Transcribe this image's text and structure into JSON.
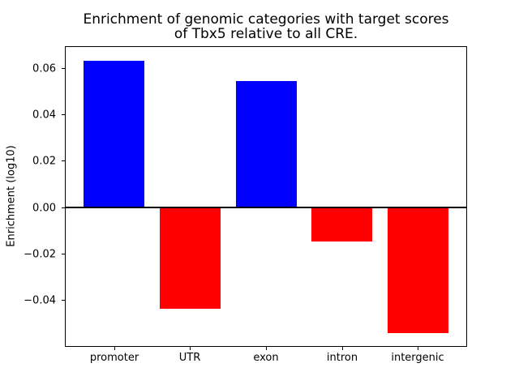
{
  "figure": {
    "background": "#ffffff",
    "text_color": "#000000"
  },
  "chart_data": {
    "type": "bar",
    "title": "Enrichment of genomic categories with target scores\nof Tbx5 relative to all CRE.",
    "title_lines": [
      "Enrichment of genomic categories with target scores",
      "of Tbx5 relative to all CRE."
    ],
    "xlabel": "",
    "ylabel": "Enrichment (log10)",
    "categories": [
      "promoter",
      "UTR",
      "exon",
      "intron",
      "intergenic"
    ],
    "values": [
      0.0632,
      -0.0437,
      0.0545,
      -0.0146,
      -0.054
    ],
    "bar_colors": [
      "#0000ff",
      "#ff0000",
      "#0000ff",
      "#ff0000",
      "#ff0000"
    ],
    "positive_color": "#0000ff",
    "negative_color": "#ff0000",
    "ylim": [
      -0.05986,
      0.06906
    ],
    "yticks": [
      {
        "value": 0.06,
        "label": "0.06"
      },
      {
        "value": 0.04,
        "label": "0.04"
      },
      {
        "value": 0.02,
        "label": "0.02"
      },
      {
        "value": 0.0,
        "label": "0.00"
      },
      {
        "value": -0.02,
        "label": "−0.02"
      },
      {
        "value": -0.04,
        "label": "−0.04"
      }
    ],
    "zero_line": true,
    "grid": false,
    "legend": null,
    "axis_color": "#000000"
  }
}
